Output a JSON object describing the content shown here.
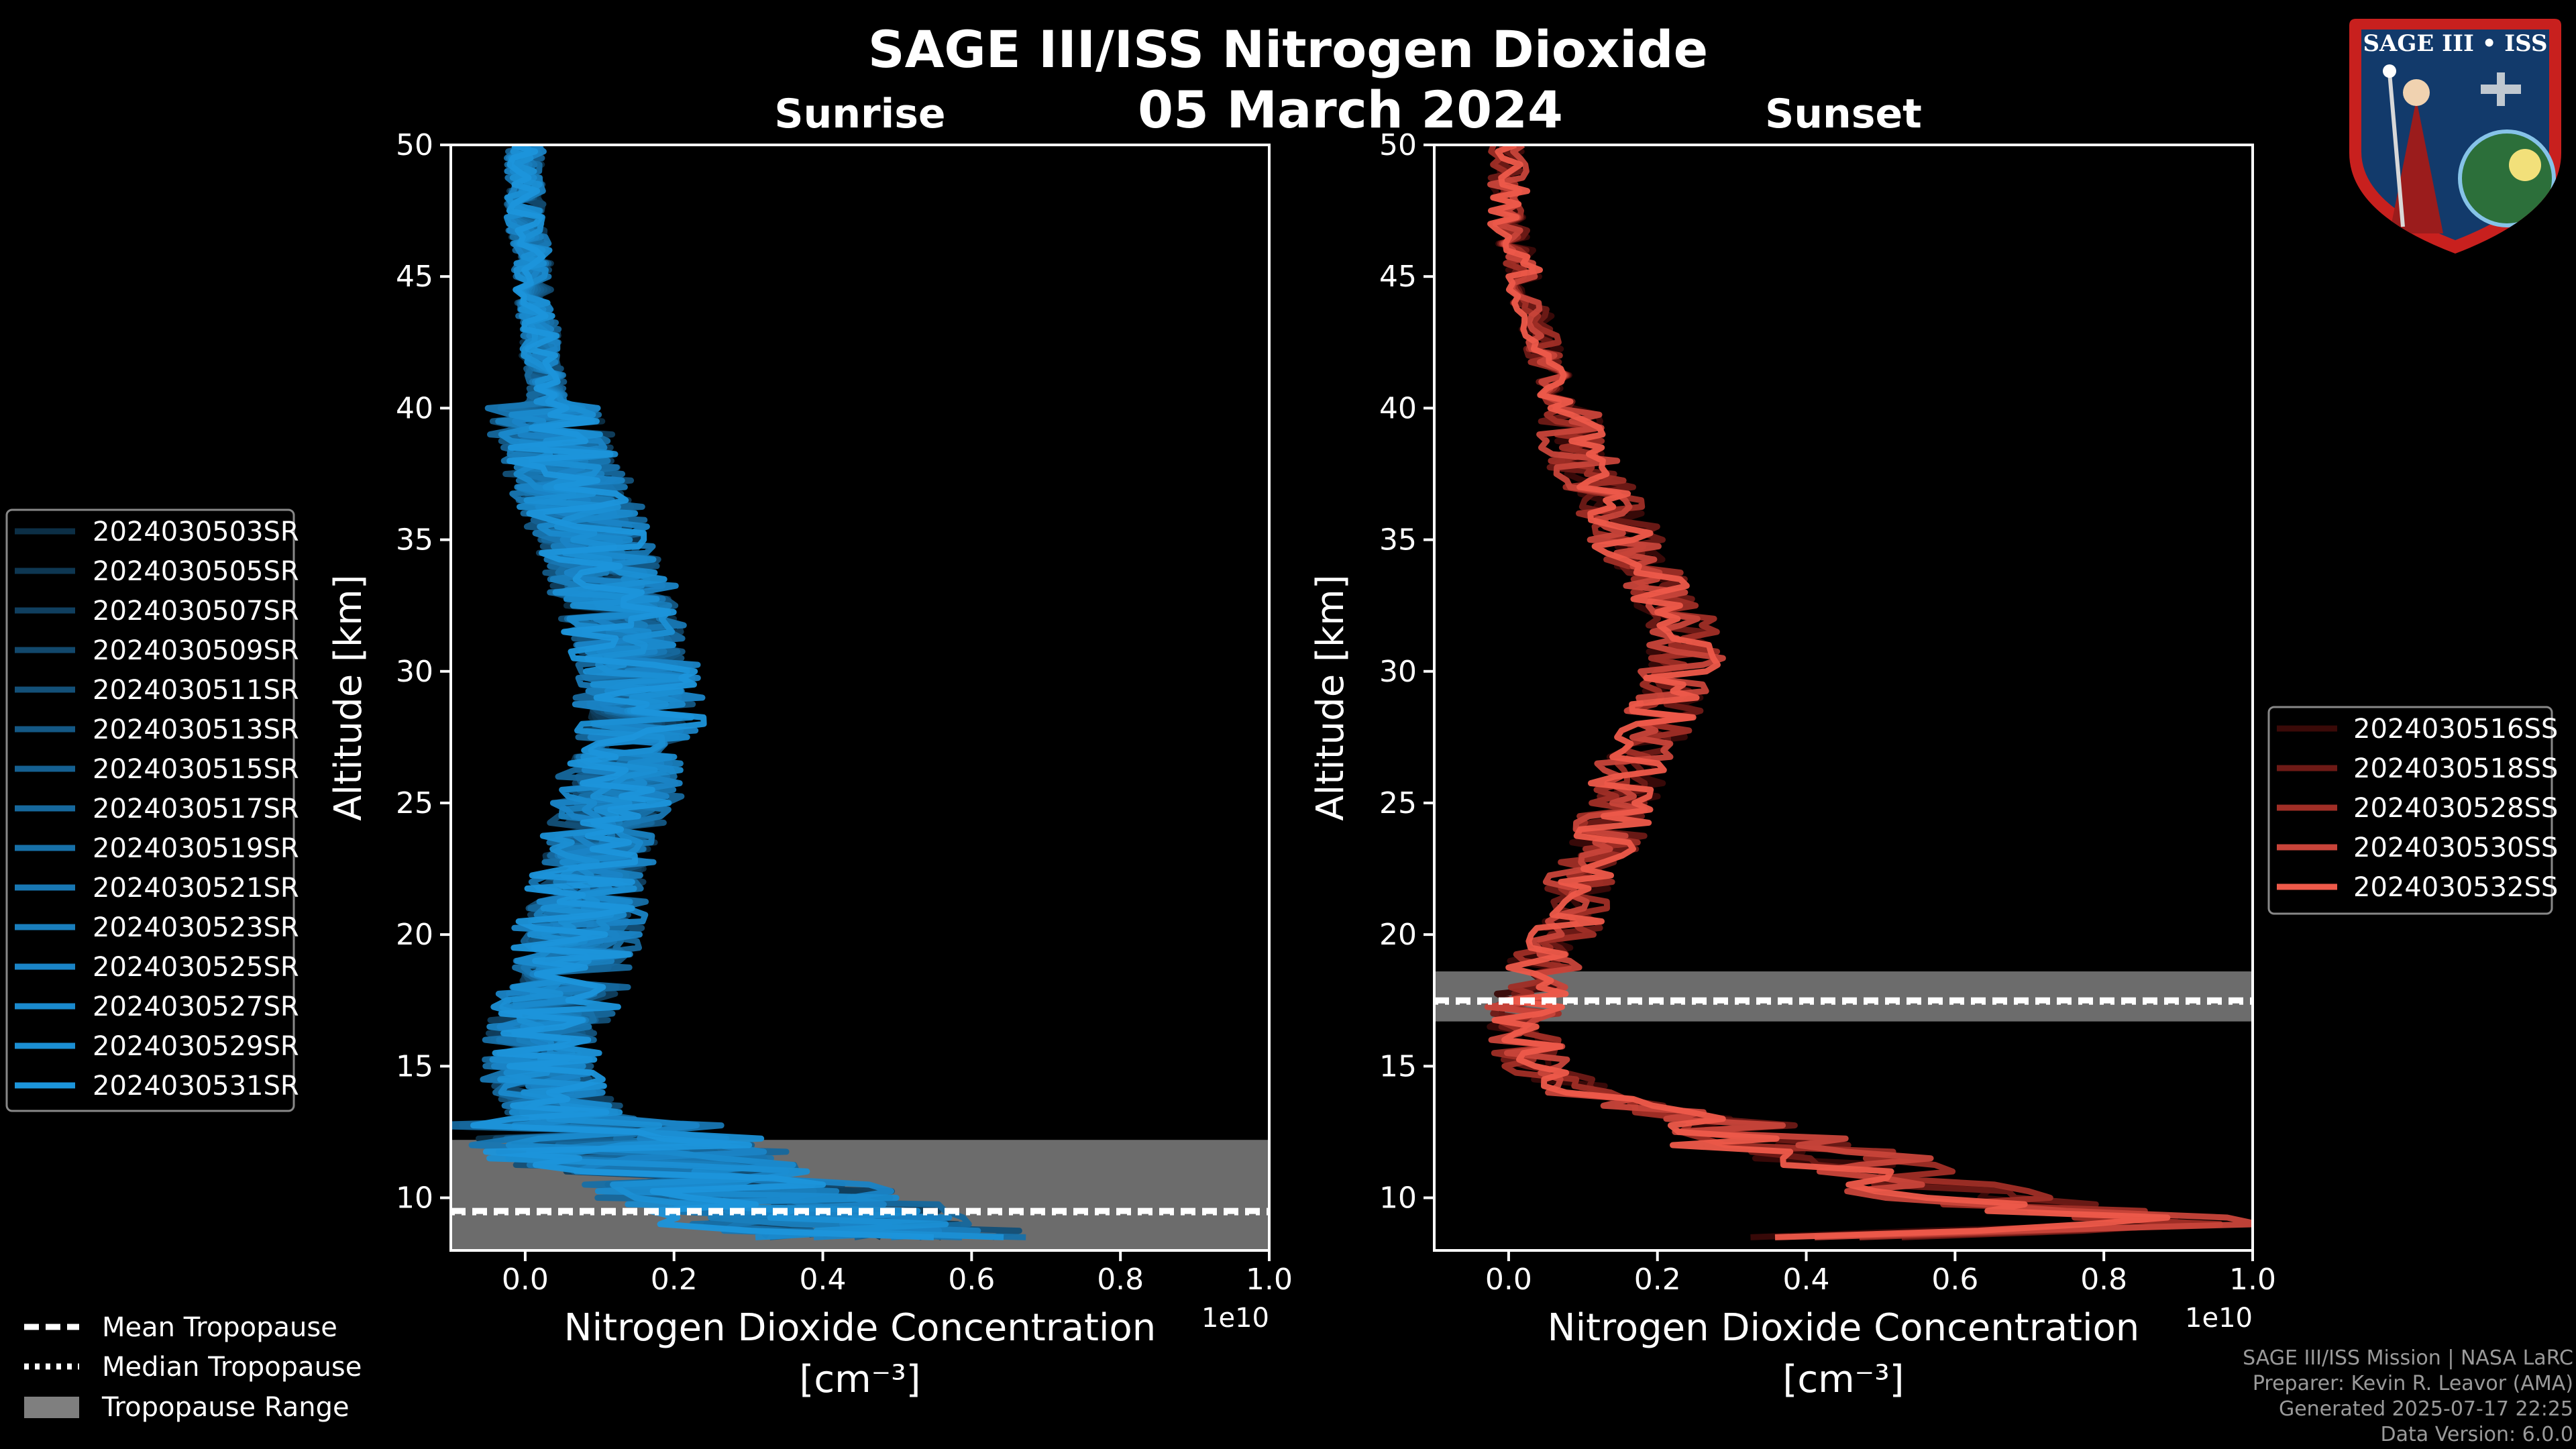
{
  "title": "SAGE III/ISS Nitrogen Dioxide",
  "date": "05 March 2024",
  "logo_text": "SAGE III • ISS",
  "colors": {
    "background": "#000000",
    "sunrise": "#1b8fd4",
    "sunset": "#ee5a4a",
    "tropopause_band": "#7f7f7f",
    "axis": "#ffffff"
  },
  "legend_tropopause": [
    {
      "label": "Mean Tropopause",
      "style": "dashed"
    },
    {
      "label": "Median Tropopause",
      "style": "dotted"
    },
    {
      "label": "Tropopause Range",
      "style": "patch"
    }
  ],
  "footer": {
    "line1": "SAGE III/ISS Mission | NASA LaRC",
    "line2": "Preparer: Kevin R. Leavor (AMA)",
    "line3": "Generated 2025-07-17 22:25",
    "line4": "Data Version: 6.0.0"
  },
  "chart_data": [
    {
      "type": "line",
      "panel": "Sunrise",
      "title": "Sunrise",
      "xlabel": "Nitrogen Dioxide Concentration",
      "xlabel_units": "[cm⁻³]",
      "ylabel": "Altitude [km]",
      "x_scale_label": "1e10",
      "xlim": [
        -0.1,
        1.0
      ],
      "ylim": [
        8,
        50
      ],
      "xticks": [
        "0.0",
        "0.2",
        "0.4",
        "0.6",
        "0.8",
        "1.0"
      ],
      "xtick_values": [
        0.0,
        0.2,
        0.4,
        0.6,
        0.8,
        1.0
      ],
      "yticks": [
        10,
        15,
        20,
        25,
        30,
        35,
        40,
        45,
        50
      ],
      "tropopause": {
        "mean": 9.5,
        "median": 9.5,
        "range": [
          8.0,
          12.2
        ]
      },
      "profile_shape": {
        "altitudes": [
          8.5,
          9,
          10,
          11,
          12,
          13,
          14,
          15,
          16,
          17,
          18,
          19,
          20,
          21,
          22,
          23,
          24,
          25,
          26,
          27,
          28,
          29,
          30,
          31,
          32,
          33,
          34,
          35,
          36,
          37,
          38,
          39,
          40,
          41,
          42,
          43,
          44,
          45,
          46,
          47,
          48,
          49,
          50
        ],
        "mean_values": [
          0.5,
          0.4,
          0.32,
          0.22,
          0.12,
          0.06,
          0.03,
          0.02,
          0.02,
          0.03,
          0.05,
          0.06,
          0.07,
          0.08,
          0.09,
          0.1,
          0.11,
          0.12,
          0.13,
          0.14,
          0.15,
          0.15,
          0.15,
          0.14,
          0.13,
          0.12,
          0.1,
          0.09,
          0.07,
          0.06,
          0.05,
          0.04,
          0.03,
          0.03,
          0.02,
          0.02,
          0.01,
          0.01,
          0.01,
          0.0,
          0.0,
          0.0,
          0.0
        ]
      },
      "series": [
        {
          "name": "2024030503SR",
          "color": "#0c2f46",
          "spread": 0.07
        },
        {
          "name": "2024030505SR",
          "color": "#0e3752",
          "spread": 0.075
        },
        {
          "name": "2024030507SR",
          "color": "#103f5f",
          "spread": 0.08
        },
        {
          "name": "2024030509SR",
          "color": "#12486c",
          "spread": 0.07
        },
        {
          "name": "2024030511SR",
          "color": "#135078",
          "spread": 0.085
        },
        {
          "name": "2024030513SR",
          "color": "#145885",
          "spread": 0.08
        },
        {
          "name": "2024030515SR",
          "color": "#156091",
          "spread": 0.075
        },
        {
          "name": "2024030517SR",
          "color": "#16689d",
          "spread": 0.09
        },
        {
          "name": "2024030519SR",
          "color": "#1770a8",
          "spread": 0.08
        },
        {
          "name": "2024030521SR",
          "color": "#1877b3",
          "spread": 0.085
        },
        {
          "name": "2024030523SR",
          "color": "#197ebd",
          "spread": 0.075
        },
        {
          "name": "2024030525SR",
          "color": "#1a84c6",
          "spread": 0.09
        },
        {
          "name": "2024030527SR",
          "color": "#1a8ace",
          "spread": 0.08
        },
        {
          "name": "2024030529SR",
          "color": "#1b8fd4",
          "spread": 0.085
        },
        {
          "name": "2024030531SR",
          "color": "#1c95db",
          "spread": 0.09
        }
      ]
    },
    {
      "type": "line",
      "panel": "Sunset",
      "title": "Sunset",
      "xlabel": "Nitrogen Dioxide Concentration",
      "xlabel_units": "[cm⁻³]",
      "ylabel": "Altitude [km]",
      "x_scale_label": "1e10",
      "xlim": [
        -0.1,
        1.0
      ],
      "ylim": [
        8,
        50
      ],
      "xticks": [
        "0.0",
        "0.2",
        "0.4",
        "0.6",
        "0.8",
        "1.0"
      ],
      "xtick_values": [
        0.0,
        0.2,
        0.4,
        0.6,
        0.8,
        1.0
      ],
      "yticks": [
        10,
        15,
        20,
        25,
        30,
        35,
        40,
        45,
        50
      ],
      "tropopause": {
        "mean": 17.5,
        "median": 17.5,
        "range": [
          16.7,
          18.6
        ]
      },
      "profile_shape": {
        "altitudes": [
          8.5,
          9,
          10,
          11,
          12,
          13,
          14,
          15,
          16,
          17,
          18,
          19,
          20,
          21,
          22,
          23,
          24,
          25,
          26,
          27,
          28,
          29,
          30,
          31,
          32,
          33,
          34,
          35,
          36,
          37,
          38,
          39,
          40,
          41,
          42,
          43,
          44,
          45,
          46,
          47,
          48,
          49,
          50
        ],
        "mean_values": [
          0.45,
          0.9,
          0.6,
          0.5,
          0.35,
          0.25,
          0.1,
          0.03,
          0.02,
          0.02,
          0.03,
          0.05,
          0.08,
          0.09,
          0.1,
          0.12,
          0.14,
          0.15,
          0.16,
          0.18,
          0.2,
          0.22,
          0.23,
          0.24,
          0.23,
          0.21,
          0.18,
          0.16,
          0.14,
          0.12,
          0.1,
          0.09,
          0.07,
          0.06,
          0.05,
          0.04,
          0.03,
          0.02,
          0.01,
          0.0,
          0.0,
          0.0,
          0.0
        ]
      },
      "series": [
        {
          "name": "2024030516SS",
          "color": "#3a0a08",
          "spread": 0.05
        },
        {
          "name": "2024030518SS",
          "color": "#6e1a16",
          "spread": 0.05
        },
        {
          "name": "2024030528SS",
          "color": "#a02e26",
          "spread": 0.05
        },
        {
          "name": "2024030530SS",
          "color": "#c8443a",
          "spread": 0.055
        },
        {
          "name": "2024030532SS",
          "color": "#ee5a4a",
          "spread": 0.05
        }
      ]
    }
  ]
}
